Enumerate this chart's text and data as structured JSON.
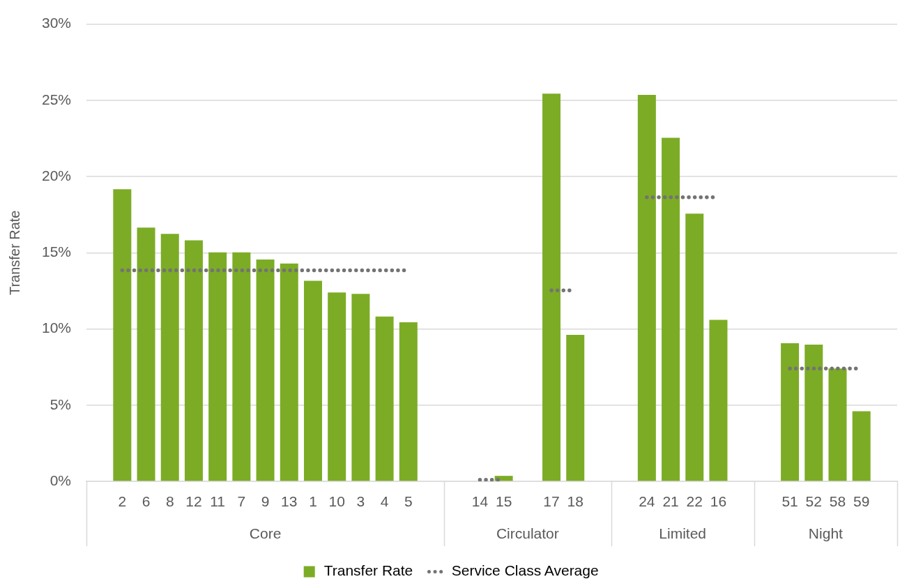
{
  "chart_data": {
    "type": "bar",
    "ylabel": "Transfer Rate",
    "categories": [
      null,
      "2",
      "6",
      "8",
      "12",
      "11",
      "7",
      "9",
      "13",
      "1",
      "10",
      "3",
      "4",
      "5",
      null,
      null,
      "14",
      "15",
      null,
      "17",
      "18",
      null,
      null,
      "24",
      "21",
      "22",
      "16",
      null,
      null,
      "51",
      "52",
      "58",
      "59",
      null
    ],
    "series": [
      {
        "name": "Transfer Rate",
        "color": "#7cac26",
        "values": [
          null,
          19.17,
          16.65,
          16.24,
          15.81,
          15.03,
          15.02,
          14.56,
          14.29,
          13.16,
          12.39,
          12.3,
          10.81,
          10.44,
          null,
          null,
          0,
          0.36,
          null,
          25.44,
          9.61,
          null,
          null,
          25.36,
          22.54,
          17.56,
          10.6,
          null,
          null,
          9.06,
          8.97,
          7.4,
          4.6,
          null
        ]
      },
      {
        "name": "Service Class Average",
        "type": "line",
        "color": "#737373",
        "line_style": "dotted",
        "marker": "none",
        "values": [
          null,
          13.85,
          13.85,
          13.85,
          13.85,
          13.85,
          13.85,
          13.85,
          13.85,
          13.85,
          13.85,
          13.85,
          13.85,
          13.85,
          null,
          null,
          0.1,
          0.1,
          null,
          12.53,
          12.53,
          null,
          null,
          18.64,
          18.64,
          18.64,
          18.64,
          null,
          null,
          7.4,
          7.4,
          7.4,
          7.4,
          null
        ]
      }
    ],
    "ylim": [
      0,
      30
    ],
    "yticks": [
      {
        "value": 0,
        "label": "0%"
      },
      {
        "value": 5,
        "label": "5%"
      },
      {
        "value": 10,
        "label": "10%"
      },
      {
        "value": 15,
        "label": "15%"
      },
      {
        "value": 20,
        "label": "20%"
      },
      {
        "value": 25,
        "label": "25%"
      },
      {
        "value": 30,
        "label": "30%"
      }
    ],
    "grid": "y",
    "legend": "bottom",
    "annotations": [
      "Core",
      "Circulator",
      "Limited",
      "Night"
    ]
  }
}
